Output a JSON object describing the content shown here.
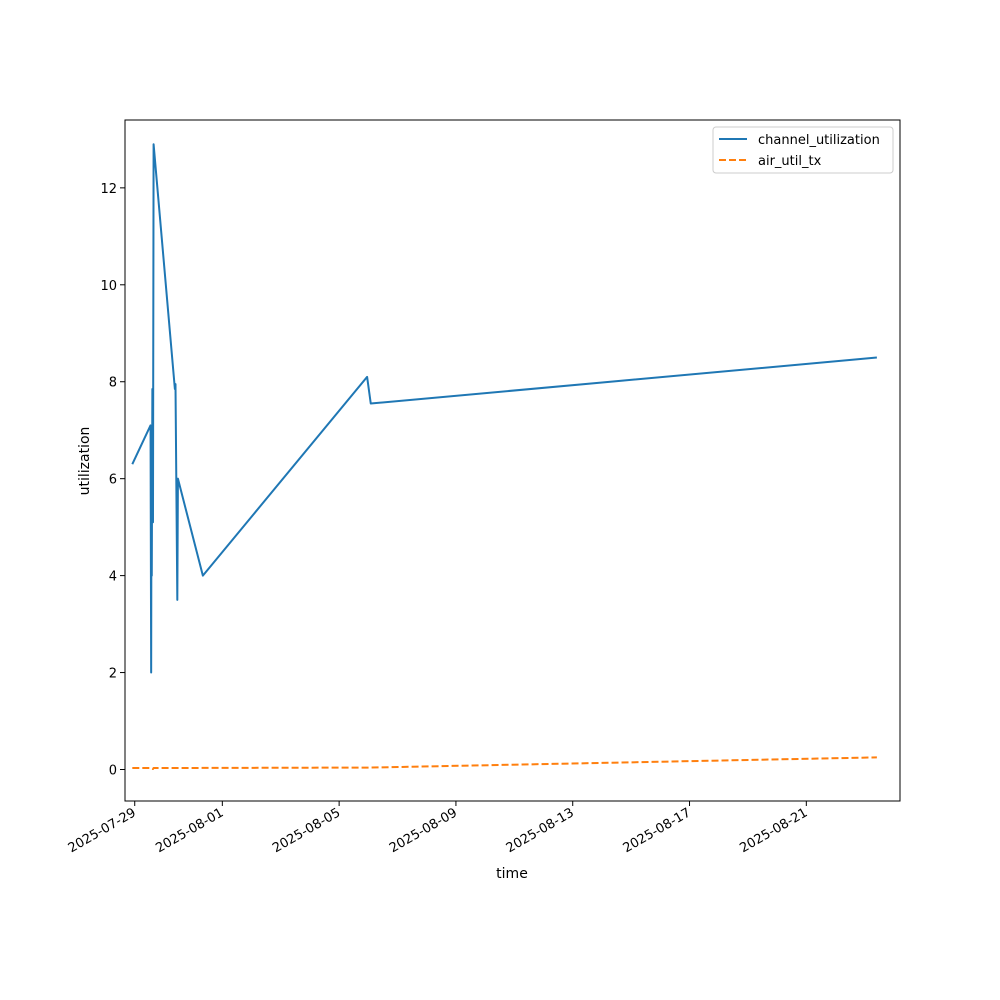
{
  "chart_data": {
    "type": "line",
    "title": "",
    "xlabel": "time",
    "ylabel": "utilization",
    "xlim": [
      "2025-07-28T16:00",
      "2025-08-24T05:00"
    ],
    "ylim": [
      -0.65,
      13.4
    ],
    "grid": false,
    "legend_position": "top-right",
    "x_ticks": [
      "2025-07-29",
      "2025-08-01",
      "2025-08-05",
      "2025-08-09",
      "2025-08-13",
      "2025-08-17",
      "2025-08-21"
    ],
    "y_ticks": [
      0,
      2,
      4,
      6,
      8,
      10,
      12
    ],
    "series": [
      {
        "name": "channel_utilization",
        "color": "#1f77b4",
        "style": "solid",
        "points": [
          {
            "x": "2025-07-28T22:00",
            "y": 6.3
          },
          {
            "x": "2025-07-29T13:00",
            "y": 7.1
          },
          {
            "x": "2025-07-29T13:30",
            "y": 2.0
          },
          {
            "x": "2025-07-29T13:45",
            "y": 5.8
          },
          {
            "x": "2025-07-29T14:00",
            "y": 4.0
          },
          {
            "x": "2025-07-29T14:30",
            "y": 7.85
          },
          {
            "x": "2025-07-29T15:00",
            "y": 5.1
          },
          {
            "x": "2025-07-29T15:30",
            "y": 12.9
          },
          {
            "x": "2025-07-30T09:00",
            "y": 7.85
          },
          {
            "x": "2025-07-30T09:30",
            "y": 7.95
          },
          {
            "x": "2025-07-30T11:00",
            "y": 3.5
          },
          {
            "x": "2025-07-30T11:30",
            "y": 6.0
          },
          {
            "x": "2025-07-31T08:00",
            "y": 4.0
          },
          {
            "x": "2025-08-05T23:00",
            "y": 8.1
          },
          {
            "x": "2025-08-06T02:00",
            "y": 7.55
          },
          {
            "x": "2025-08-23T10:00",
            "y": 8.5
          }
        ]
      },
      {
        "name": "air_util_tx",
        "color": "#ff7f0e",
        "style": "dashed",
        "points": [
          {
            "x": "2025-07-28T22:00",
            "y": 0.03
          },
          {
            "x": "2025-07-29T13:00",
            "y": 0.03
          },
          {
            "x": "2025-07-29T15:00",
            "y": 0.01
          },
          {
            "x": "2025-07-29T15:30",
            "y": 0.03
          },
          {
            "x": "2025-08-06T02:00",
            "y": 0.04
          },
          {
            "x": "2025-08-23T10:00",
            "y": 0.25
          }
        ]
      }
    ]
  }
}
